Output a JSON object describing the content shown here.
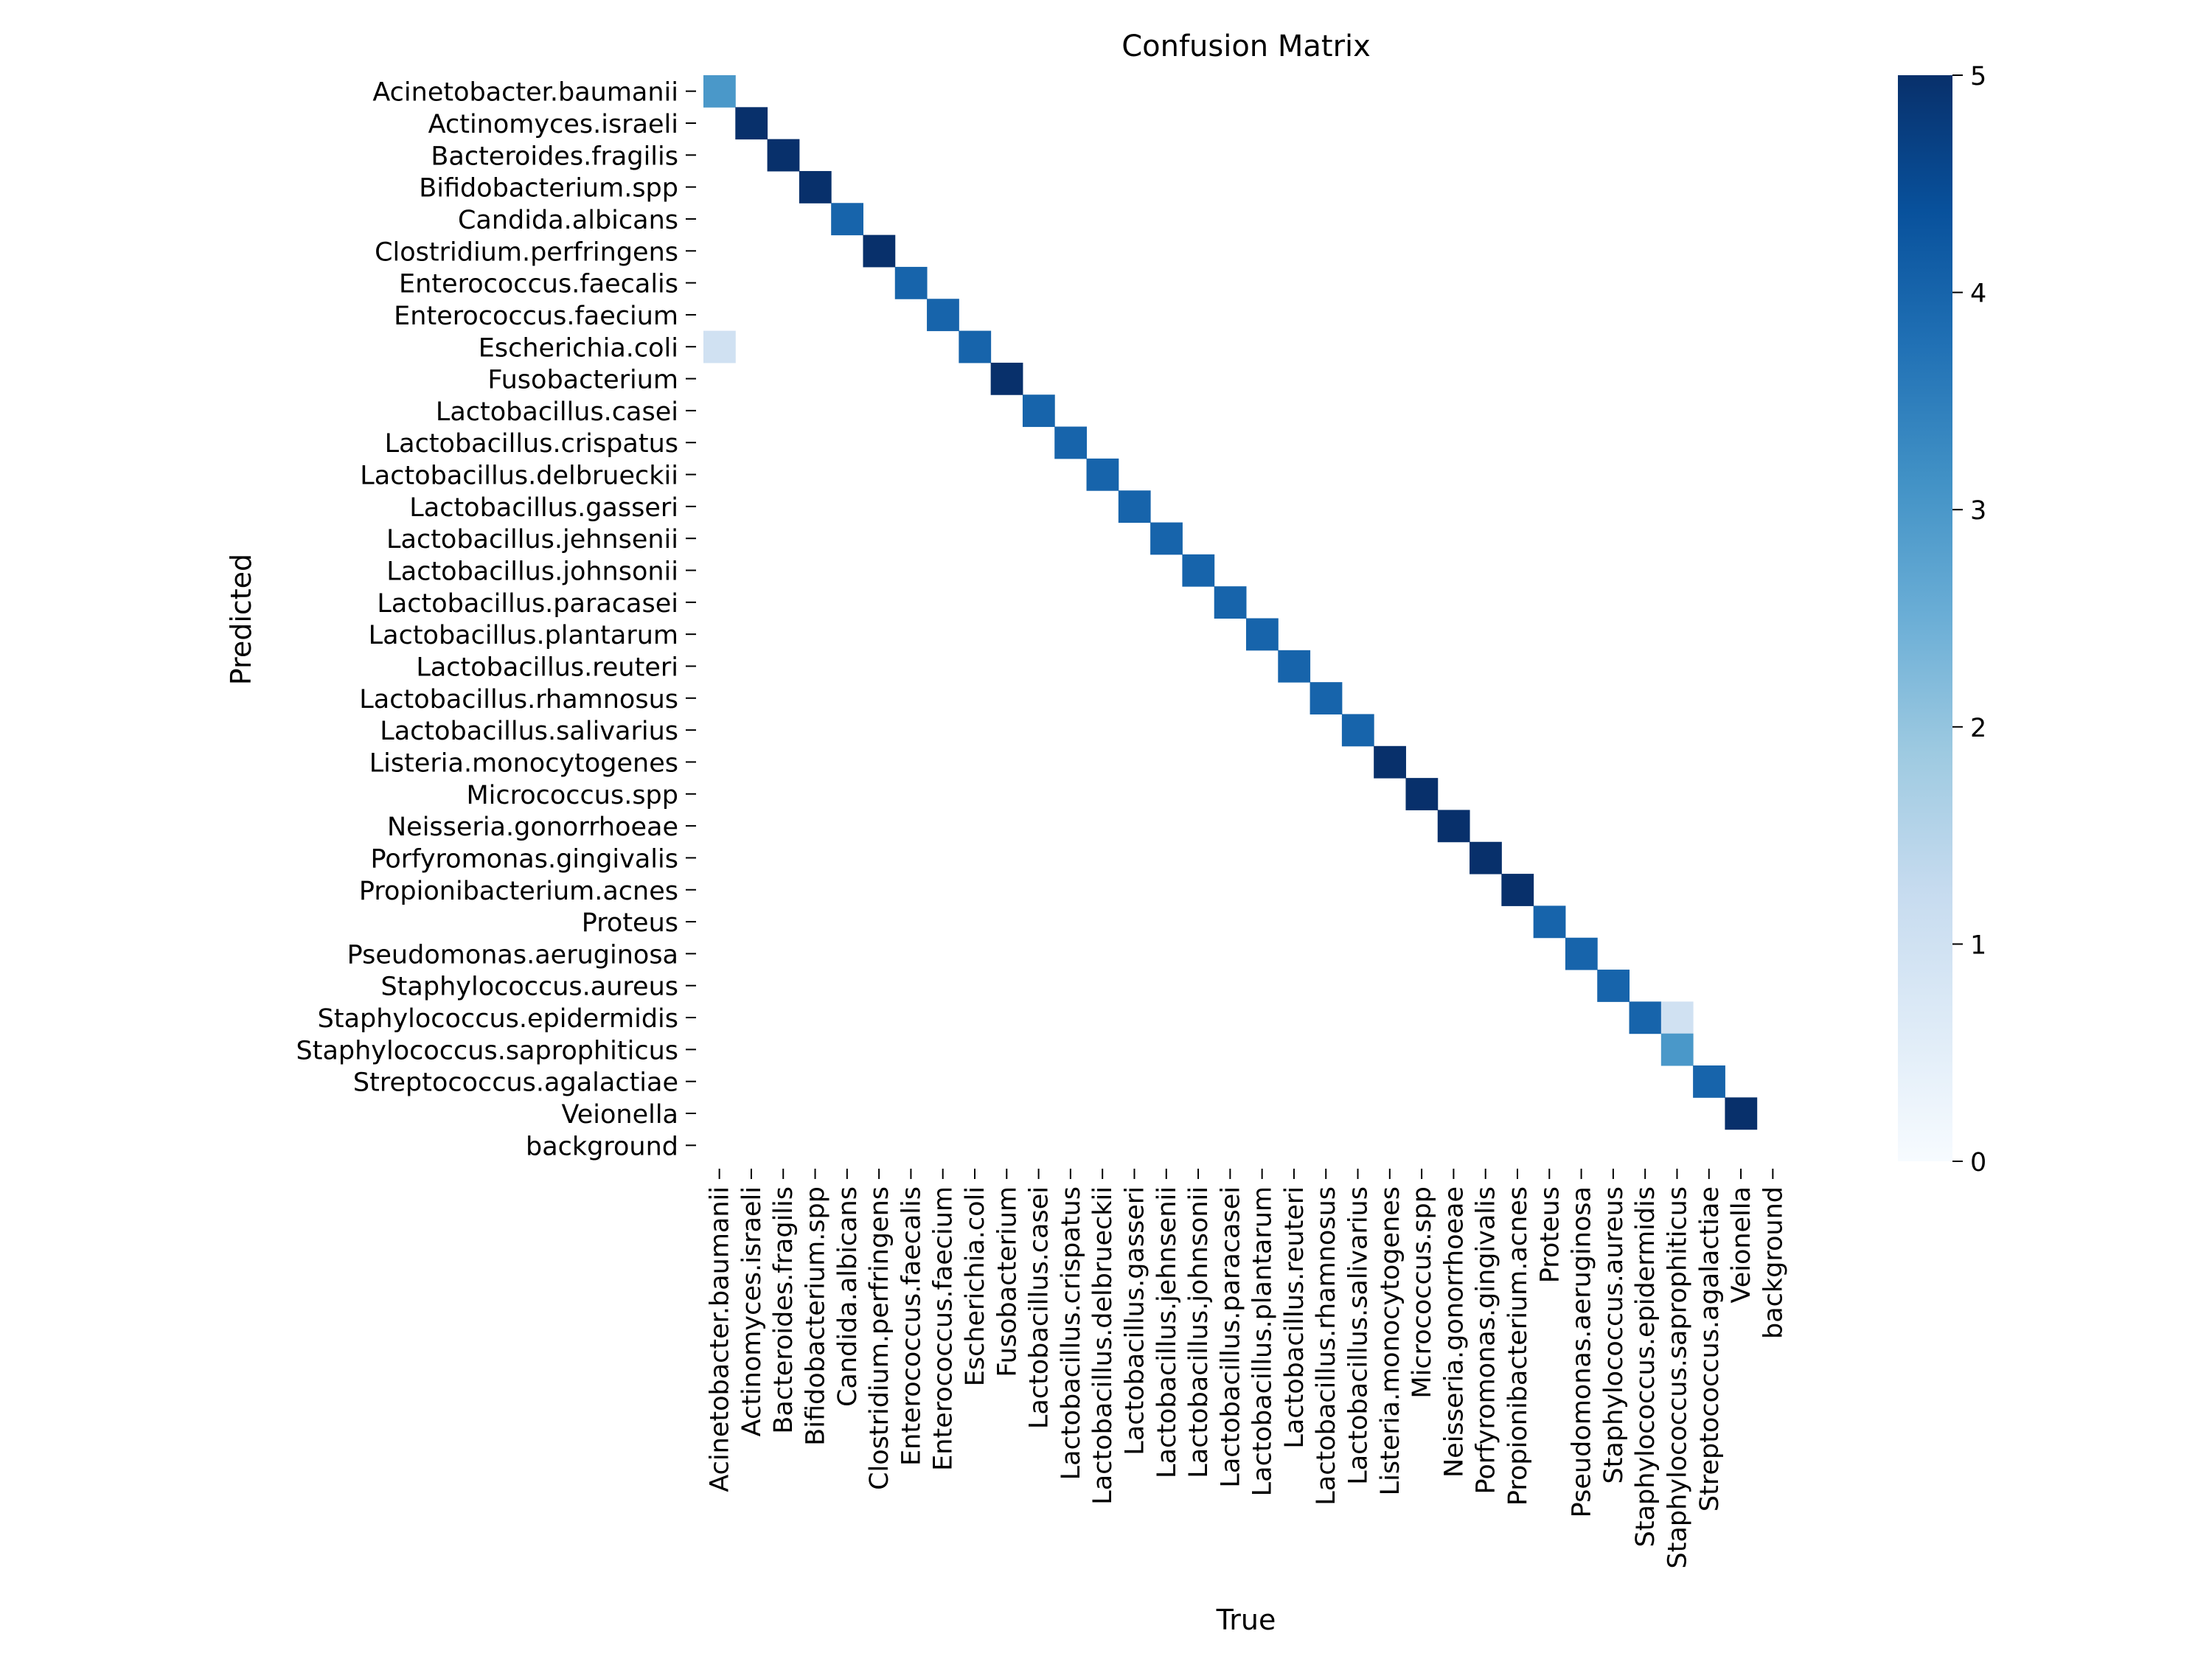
{
  "chart_data": {
    "type": "heatmap",
    "title": "Confusion Matrix",
    "xlabel": "True",
    "ylabel": "Predicted",
    "labels": [
      "Acinetobacter.baumanii",
      "Actinomyces.israeli",
      "Bacteroides.fragilis",
      "Bifidobacterium.spp",
      "Candida.albicans",
      "Clostridium.perfringens",
      "Enterococcus.faecalis",
      "Enterococcus.faecium",
      "Escherichia.coli",
      "Fusobacterium",
      "Lactobacillus.casei",
      "Lactobacillus.crispatus",
      "Lactobacillus.delbrueckii",
      "Lactobacillus.gasseri",
      "Lactobacillus.jehnsenii",
      "Lactobacillus.johnsonii",
      "Lactobacillus.paracasei",
      "Lactobacillus.plantarum",
      "Lactobacillus.reuteri",
      "Lactobacillus.rhamnosus",
      "Lactobacillus.salivarius",
      "Listeria.monocytogenes",
      "Micrococcus.spp",
      "Neisseria.gonorrhoeae",
      "Porfyromonas.gingivalis",
      "Propionibacterium.acnes",
      "Proteus",
      "Pseudomonas.aeruginosa",
      "Staphylococcus.aureus",
      "Staphylococcus.epidermidis",
      "Staphylococcus.saprophiticus",
      "Streptococcus.agalactiae",
      "Veionella",
      "background"
    ],
    "cells": [
      {
        "pred": 0,
        "true": 0,
        "value": 3
      },
      {
        "pred": 1,
        "true": 1,
        "value": 5
      },
      {
        "pred": 2,
        "true": 2,
        "value": 5
      },
      {
        "pred": 3,
        "true": 3,
        "value": 5
      },
      {
        "pred": 4,
        "true": 4,
        "value": 4
      },
      {
        "pred": 5,
        "true": 5,
        "value": 5
      },
      {
        "pred": 6,
        "true": 6,
        "value": 4
      },
      {
        "pred": 7,
        "true": 7,
        "value": 4
      },
      {
        "pred": 8,
        "true": 0,
        "value": 1
      },
      {
        "pred": 8,
        "true": 8,
        "value": 4
      },
      {
        "pred": 9,
        "true": 9,
        "value": 5
      },
      {
        "pred": 10,
        "true": 10,
        "value": 4
      },
      {
        "pred": 11,
        "true": 11,
        "value": 4
      },
      {
        "pred": 12,
        "true": 12,
        "value": 4
      },
      {
        "pred": 13,
        "true": 13,
        "value": 4
      },
      {
        "pred": 14,
        "true": 14,
        "value": 4
      },
      {
        "pred": 15,
        "true": 15,
        "value": 4
      },
      {
        "pred": 16,
        "true": 16,
        "value": 4
      },
      {
        "pred": 17,
        "true": 17,
        "value": 4
      },
      {
        "pred": 18,
        "true": 18,
        "value": 4
      },
      {
        "pred": 19,
        "true": 19,
        "value": 4
      },
      {
        "pred": 20,
        "true": 20,
        "value": 4
      },
      {
        "pred": 21,
        "true": 21,
        "value": 5
      },
      {
        "pred": 22,
        "true": 22,
        "value": 5
      },
      {
        "pred": 23,
        "true": 23,
        "value": 5
      },
      {
        "pred": 24,
        "true": 24,
        "value": 5
      },
      {
        "pred": 25,
        "true": 25,
        "value": 5
      },
      {
        "pred": 26,
        "true": 26,
        "value": 4
      },
      {
        "pred": 27,
        "true": 27,
        "value": 4
      },
      {
        "pred": 28,
        "true": 28,
        "value": 4
      },
      {
        "pred": 29,
        "true": 29,
        "value": 4
      },
      {
        "pred": 29,
        "true": 30,
        "value": 1
      },
      {
        "pred": 30,
        "true": 30,
        "value": 3
      },
      {
        "pred": 31,
        "true": 31,
        "value": 4
      },
      {
        "pred": 32,
        "true": 32,
        "value": 5
      }
    ],
    "colorbar": {
      "vmin": 0,
      "vmax": 5,
      "ticks": [
        "0",
        "1",
        "2",
        "3",
        "4",
        "5"
      ],
      "colormap": "Blues",
      "low_color": "#f7fbff",
      "high_color": "#08306b"
    },
    "grid": false
  }
}
